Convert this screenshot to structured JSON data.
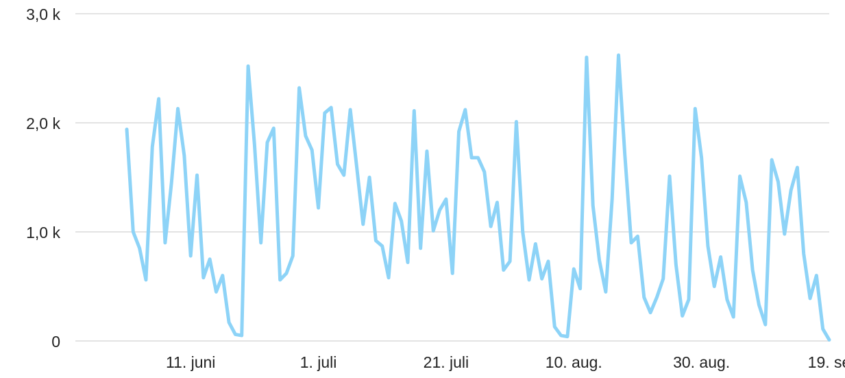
{
  "chart_data": {
    "type": "line",
    "x": [
      "06-01",
      "06-02",
      "06-03",
      "06-04",
      "06-05",
      "06-06",
      "06-07",
      "06-08",
      "06-09",
      "06-10",
      "06-11",
      "06-12",
      "06-13",
      "06-14",
      "06-15",
      "06-16",
      "06-17",
      "06-18",
      "06-19",
      "06-20",
      "06-21",
      "06-22",
      "06-23",
      "06-24",
      "06-25",
      "06-26",
      "06-27",
      "06-28",
      "06-29",
      "06-30",
      "07-01",
      "07-02",
      "07-03",
      "07-04",
      "07-05",
      "07-06",
      "07-07",
      "07-08",
      "07-09",
      "07-10",
      "07-11",
      "07-12",
      "07-13",
      "07-14",
      "07-15",
      "07-16",
      "07-17",
      "07-18",
      "07-19",
      "07-20",
      "07-21",
      "07-22",
      "07-23",
      "07-24",
      "07-25",
      "07-26",
      "07-27",
      "07-28",
      "07-29",
      "07-30",
      "07-31",
      "08-01",
      "08-02",
      "08-03",
      "08-04",
      "08-05",
      "08-06",
      "08-07",
      "08-08",
      "08-09",
      "08-10",
      "08-11",
      "08-12",
      "08-13",
      "08-14",
      "08-15",
      "08-16",
      "08-17",
      "08-18",
      "08-19",
      "08-20",
      "08-21",
      "08-22",
      "08-23",
      "08-24",
      "08-25",
      "08-26",
      "08-27",
      "08-28",
      "08-29",
      "08-30",
      "08-31",
      "09-01",
      "09-02",
      "09-03",
      "09-04",
      "09-05",
      "09-06",
      "09-07",
      "09-08",
      "09-09",
      "09-10",
      "09-11",
      "09-12",
      "09-13",
      "09-14",
      "09-15",
      "09-16",
      "09-17",
      "09-18",
      "09-19"
    ],
    "values": [
      1940,
      1000,
      850,
      560,
      1780,
      2220,
      900,
      1450,
      2130,
      1700,
      780,
      1520,
      580,
      750,
      450,
      600,
      170,
      60,
      50,
      2520,
      1800,
      900,
      1820,
      1950,
      560,
      620,
      780,
      2320,
      1880,
      1750,
      1220,
      2090,
      2140,
      1620,
      1520,
      2120,
      1600,
      1070,
      1500,
      920,
      870,
      580,
      1260,
      1100,
      720,
      2110,
      850,
      1740,
      1010,
      1200,
      1300,
      620,
      1920,
      2120,
      1680,
      1680,
      1550,
      1050,
      1270,
      650,
      730,
      2010,
      1000,
      560,
      890,
      570,
      730,
      130,
      50,
      40,
      660,
      480,
      2600,
      1240,
      740,
      450,
      1300,
      2620,
      1700,
      900,
      960,
      400,
      260,
      400,
      570,
      1510,
      700,
      230,
      380,
      2130,
      1680,
      870,
      500,
      770,
      380,
      220,
      1510,
      1270,
      650,
      330,
      150,
      1660,
      1460,
      980,
      1380,
      1590,
      800,
      390,
      600,
      110,
      10
    ],
    "color": "#8dd3f7",
    "ylim": [
      0,
      3000
    ],
    "yticks": [
      0,
      {
        "value": 1000,
        "label": "1,0 k"
      },
      {
        "value": 2000,
        "label": "2,0 k"
      },
      {
        "value": 3000,
        "label": "3,0 k"
      }
    ],
    "xticks": [
      {
        "value": "06-11",
        "label": "11. juni"
      },
      {
        "value": "07-01",
        "label": "1. juli"
      },
      {
        "value": "07-21",
        "label": "21. juli"
      },
      {
        "value": "08-10",
        "label": "10. aug."
      },
      {
        "value": "08-30",
        "label": "30. aug."
      },
      {
        "value": "09-19",
        "label": "19. se"
      }
    ],
    "grid": true
  }
}
